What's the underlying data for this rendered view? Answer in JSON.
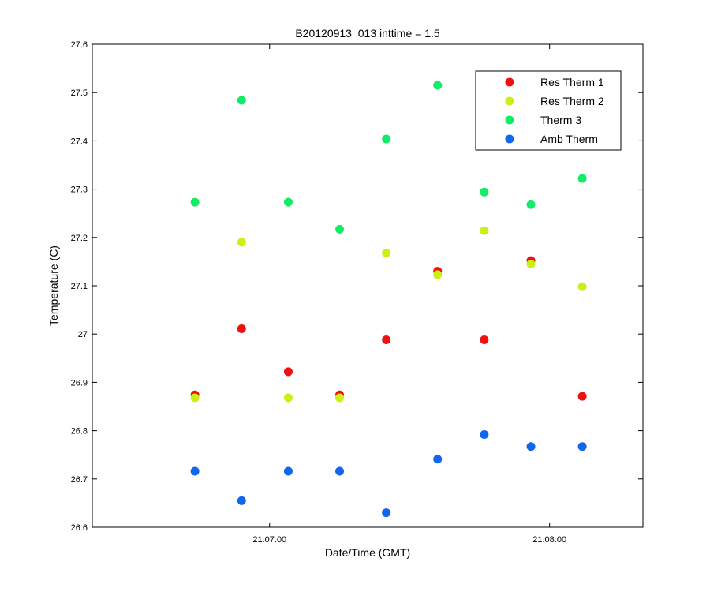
{
  "chart_data": {
    "type": "scatter",
    "title": "B20120913_013 inttime = 1.5",
    "xlabel": "Date/Time (GMT)",
    "ylabel": "Temperature (C)",
    "ylim": [
      26.6,
      27.6
    ],
    "xlim": [
      "21:06:22",
      "21:08:20"
    ],
    "grid": false,
    "legend_position": "top-right",
    "y_ticks": [
      "26.6",
      "26.7",
      "26.8",
      "26.9",
      "27",
      "27.1",
      "27.2",
      "27.3",
      "27.4",
      "27.5",
      "27.6"
    ],
    "x_ticks": [
      "21:07:00",
      "21:08:00"
    ],
    "x": [
      "21:06:44",
      "21:06:54",
      "21:07:04",
      "21:07:15",
      "21:07:25",
      "21:07:36",
      "21:07:46",
      "21:07:56",
      "21:08:07"
    ],
    "series": [
      {
        "name": "Res Therm 1",
        "color": "#ee1111",
        "values": [
          26.874,
          27.011,
          26.922,
          26.874,
          26.988,
          27.13,
          26.988,
          27.152,
          26.871
        ]
      },
      {
        "name": "Res Therm 2",
        "color": "#ccf016",
        "values": [
          26.868,
          27.19,
          26.868,
          26.868,
          27.168,
          27.123,
          27.214,
          27.145,
          27.098
        ]
      },
      {
        "name": "Therm 3",
        "color": "#11ee66",
        "values": [
          27.273,
          27.484,
          27.273,
          27.217,
          27.404,
          27.515,
          27.294,
          27.268,
          27.322
        ]
      },
      {
        "name": "Amb Therm",
        "color": "#1166ee",
        "values": [
          26.716,
          26.655,
          26.716,
          26.716,
          26.63,
          26.741,
          26.792,
          26.767,
          26.767
        ]
      }
    ]
  }
}
